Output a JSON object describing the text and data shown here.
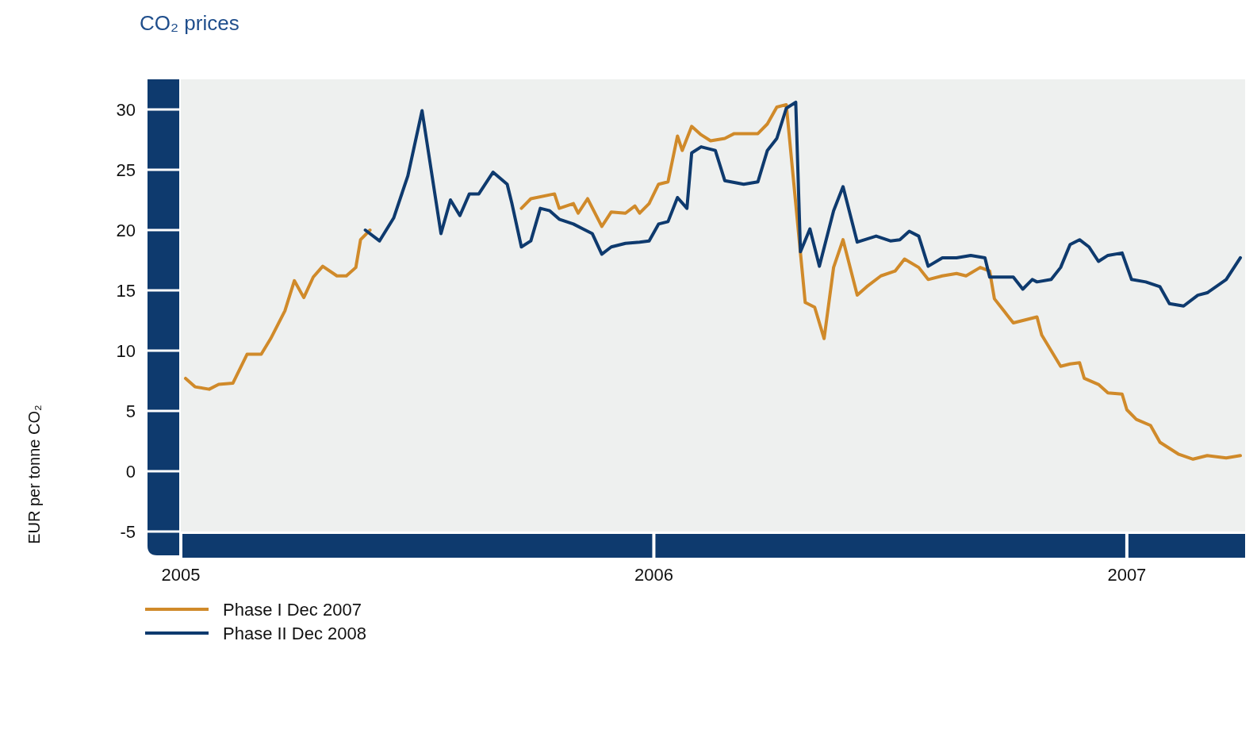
{
  "chart_data": {
    "type": "line",
    "title": "CO₂ prices",
    "ylabel": "EUR per tonne CO₂",
    "xlim": [
      2005,
      2007.25
    ],
    "xticks": [
      2005,
      2006,
      2007
    ],
    "ylim": [
      -5,
      32.5
    ],
    "yticks": [
      -5,
      0,
      5,
      10,
      15,
      20,
      25,
      30
    ],
    "grid": false,
    "legend": "bottom left",
    "line_style": "solid",
    "marker": "none",
    "series": [
      {
        "name": "Phase I Dec 2007",
        "color": "#d08a2a",
        "x": [
          2005.01,
          2005.03,
          2005.06,
          2005.08,
          2005.11,
          2005.14,
          2005.17,
          2005.19,
          2005.22,
          2005.24,
          2005.26,
          2005.28,
          2005.3,
          2005.33,
          2005.35,
          2005.37,
          2005.38,
          2005.4,
          2005.55,
          2005.72,
          2005.74,
          2005.79,
          2005.8,
          2005.83,
          2005.84,
          2005.86,
          2005.89,
          2005.91,
          2005.94,
          2005.96,
          2005.97,
          2005.99,
          2006.01,
          2006.03,
          2006.05,
          2006.06,
          2006.08,
          2006.1,
          2006.12,
          2006.15,
          2006.17,
          2006.22,
          2006.24,
          2006.26,
          2006.28,
          2006.32,
          2006.34,
          2006.36,
          2006.38,
          2006.4,
          2006.43,
          2006.45,
          2006.48,
          2006.51,
          2006.53,
          2006.56,
          2006.58,
          2006.61,
          2006.64,
          2006.66,
          2006.69,
          2006.71,
          2006.72,
          2006.74,
          2006.76,
          2006.79,
          2006.81,
          2006.82,
          2006.84,
          2006.86,
          2006.88,
          2006.9,
          2006.91,
          2006.94,
          2006.96,
          2006.99,
          2007.0,
          2007.02,
          2007.05,
          2007.07,
          2007.11,
          2007.14,
          2007.17,
          2007.21,
          2007.24
        ],
        "values": [
          7.7,
          7.0,
          6.8,
          7.2,
          7.3,
          9.7,
          9.7,
          11.0,
          13.3,
          15.8,
          14.4,
          16.1,
          17.0,
          16.2,
          16.2,
          16.9,
          19.2,
          20.0,
          null,
          21.8,
          22.6,
          23.0,
          21.8,
          22.2,
          21.4,
          22.6,
          20.3,
          21.5,
          21.4,
          22.0,
          21.4,
          22.2,
          23.8,
          24.0,
          27.8,
          26.6,
          28.6,
          27.9,
          27.4,
          27.6,
          28.0,
          28.0,
          28.8,
          30.2,
          30.4,
          14.0,
          13.6,
          11.0,
          16.9,
          19.2,
          14.6,
          15.3,
          16.2,
          16.6,
          17.6,
          16.9,
          15.9,
          16.2,
          16.4,
          16.2,
          16.9,
          16.6,
          14.3,
          13.3,
          12.3,
          12.6,
          12.8,
          11.3,
          10.0,
          8.7,
          8.9,
          9.0,
          7.7,
          7.2,
          6.5,
          6.4,
          5.1,
          4.3,
          3.8,
          2.4,
          1.4,
          1.0,
          1.3,
          1.1,
          1.3
        ]
      },
      {
        "name": "Phase II Dec 2008",
        "color": "#0e3a6e",
        "x": [
          2005.39,
          2005.42,
          2005.45,
          2005.48,
          2005.51,
          2005.55,
          2005.57,
          2005.59,
          2005.61,
          2005.63,
          2005.66,
          2005.69,
          2005.7,
          2005.72,
          2005.74,
          2005.76,
          2005.78,
          2005.8,
          2005.83,
          2005.85,
          2005.87,
          2005.89,
          2005.91,
          2005.94,
          2005.97,
          2005.99,
          2006.01,
          2006.03,
          2006.05,
          2006.07,
          2006.08,
          2006.1,
          2006.13,
          2006.15,
          2006.19,
          2006.22,
          2006.24,
          2006.26,
          2006.28,
          2006.3,
          2006.31,
          2006.33,
          2006.35,
          2006.38,
          2006.4,
          2006.43,
          2006.47,
          2006.5,
          2006.52,
          2006.54,
          2006.56,
          2006.58,
          2006.61,
          2006.64,
          2006.67,
          2006.7,
          2006.71,
          2006.76,
          2006.78,
          2006.8,
          2006.81,
          2006.84,
          2006.86,
          2006.88,
          2006.9,
          2006.92,
          2006.94,
          2006.96,
          2006.99,
          2007.01,
          2007.04,
          2007.07,
          2007.09,
          2007.12,
          2007.15,
          2007.17,
          2007.21,
          2007.24
        ],
        "values": [
          20.0,
          19.1,
          21.0,
          24.5,
          29.9,
          19.7,
          22.5,
          21.2,
          23.0,
          23.0,
          24.8,
          23.8,
          22.2,
          18.6,
          19.1,
          21.8,
          21.6,
          20.9,
          20.5,
          20.1,
          19.7,
          18.0,
          18.6,
          18.9,
          19.0,
          19.1,
          20.5,
          20.7,
          22.7,
          21.8,
          26.4,
          26.9,
          26.6,
          24.1,
          23.8,
          24.0,
          26.6,
          27.6,
          30.1,
          30.6,
          18.2,
          20.1,
          17.0,
          21.6,
          23.6,
          19.0,
          19.5,
          19.1,
          19.2,
          19.9,
          19.5,
          17.0,
          17.7,
          17.7,
          17.9,
          17.7,
          16.1,
          16.1,
          15.1,
          15.9,
          15.7,
          15.9,
          16.9,
          18.8,
          19.2,
          18.6,
          17.4,
          17.9,
          18.1,
          15.9,
          15.7,
          15.3,
          13.9,
          13.7,
          14.6,
          14.8,
          15.9,
          17.7
        ]
      }
    ]
  }
}
